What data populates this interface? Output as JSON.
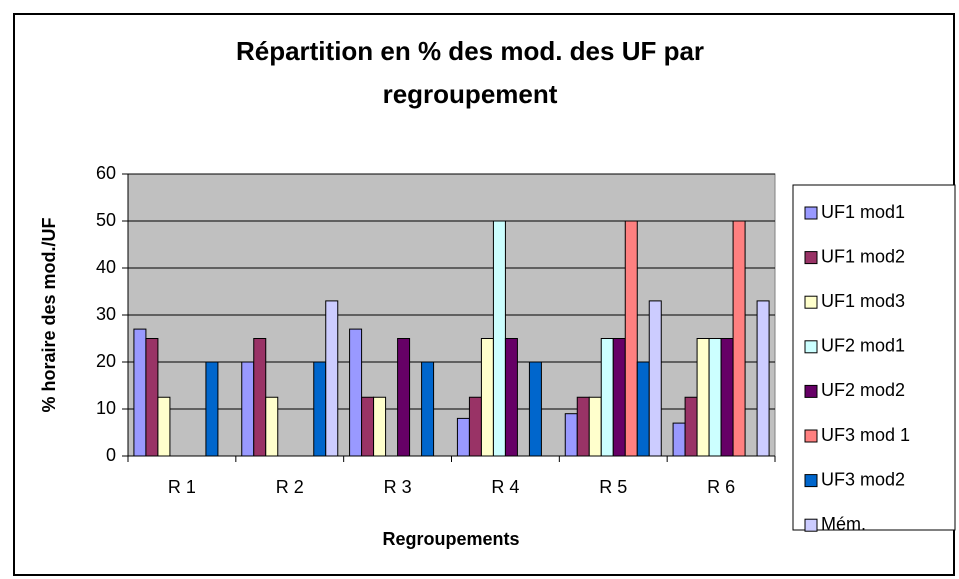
{
  "chart_data": {
    "type": "bar",
    "title": "Répartition en % des mod. des UF par regroupement",
    "x_label": "Regroupements",
    "y_label": "% horaire des mod./UF",
    "categories": [
      "R 1",
      "R 2",
      "R 3",
      "R 4",
      "R 5",
      "R 6"
    ],
    "series": [
      {
        "name": "UF1 mod1",
        "color": "#9999FF",
        "values": [
          27,
          20,
          27,
          8,
          9,
          7
        ]
      },
      {
        "name": "UF1 mod2",
        "color": "#993366",
        "values": [
          25,
          25,
          12.5,
          12.5,
          12.5,
          12.5
        ]
      },
      {
        "name": "UF1 mod3",
        "color": "#FFFFCC",
        "values": [
          12.5,
          12.5,
          12.5,
          25,
          12.5,
          25
        ]
      },
      {
        "name": "UF2 mod1",
        "color": "#CCFFFF",
        "values": [
          null,
          null,
          null,
          50,
          25,
          25
        ]
      },
      {
        "name": "UF2 mod2",
        "color": "#660066",
        "values": [
          null,
          null,
          25,
          25,
          25,
          25
        ]
      },
      {
        "name": "UF3 mod 1",
        "color": "#FF8080",
        "values": [
          null,
          null,
          null,
          null,
          50,
          50
        ]
      },
      {
        "name": "UF3 mod2",
        "color": "#0066CC",
        "values": [
          20,
          20,
          20,
          20,
          20,
          null
        ]
      },
      {
        "name": "Mém.",
        "color": "#CCCCFF",
        "values": [
          null,
          33,
          null,
          null,
          33,
          33
        ]
      }
    ],
    "ylim": [
      0,
      60
    ],
    "yticks": [
      0,
      10,
      20,
      30,
      40,
      50,
      60
    ],
    "grid": true,
    "plot_background": "#C0C0C0",
    "legend": "right"
  }
}
